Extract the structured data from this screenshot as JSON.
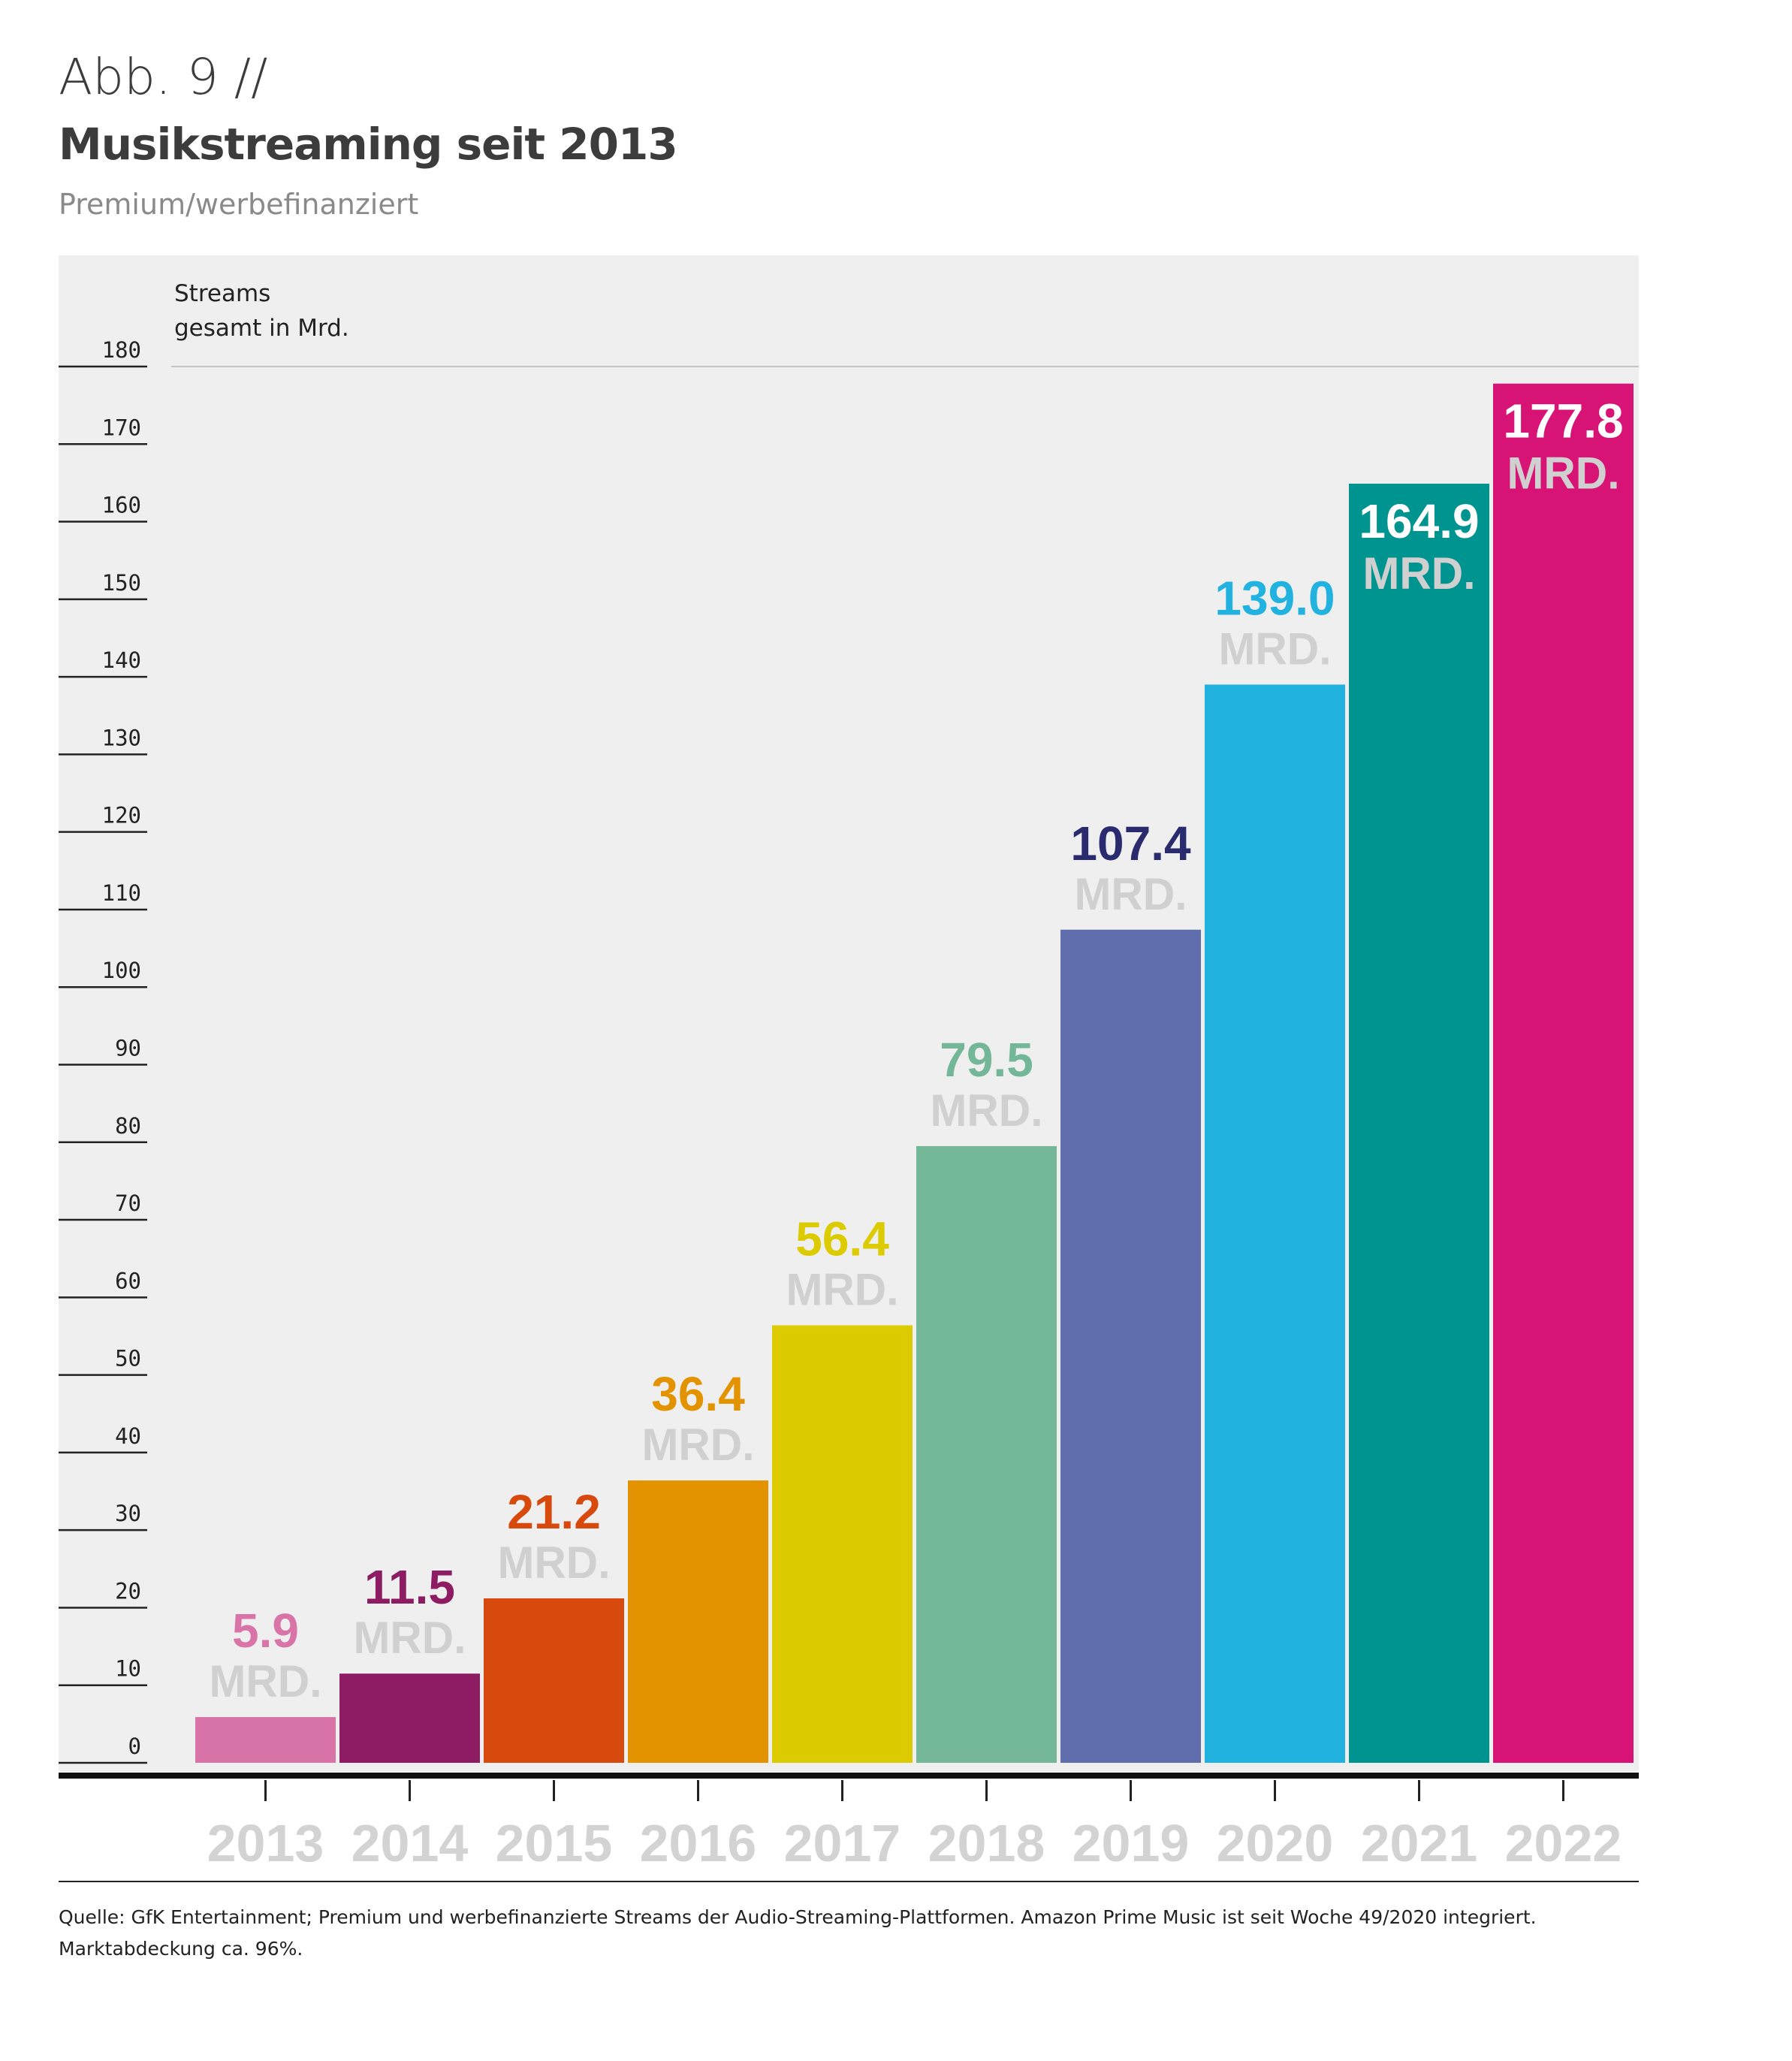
{
  "header": {
    "figure_label": "Abb. 9 //",
    "title": "Musikstreaming seit 2013",
    "subtitle": "Premium/werbefinanziert"
  },
  "footer": {
    "source_line1": "Quelle: GfK Entertainment; Premium und werbefinanzierte Streams der Audio-Streaming-Plattformen. Amazon Prime Music ist seit Woche 49/2020 integriert.",
    "source_line2": "Marktabdeckung ca. 96%."
  },
  "chart_data": {
    "type": "bar",
    "title": "Musikstreaming seit 2013",
    "subtitle": "Premium/werbefinanziert",
    "ylabel": "Streams\ngesamt in Mrd.",
    "xlabel": "",
    "unit_label": "MRD.",
    "ylim": [
      0,
      180
    ],
    "yticks": [
      0,
      10,
      20,
      30,
      40,
      50,
      60,
      70,
      80,
      90,
      100,
      110,
      120,
      130,
      140,
      150,
      160,
      170,
      180
    ],
    "grid": false,
    "categories": [
      "2013",
      "2014",
      "2015",
      "2016",
      "2017",
      "2018",
      "2019",
      "2020",
      "2021",
      "2022"
    ],
    "values": [
      5.9,
      11.5,
      21.2,
      36.4,
      56.4,
      79.5,
      107.4,
      139.0,
      164.9,
      177.8
    ],
    "value_labels": [
      "5.9",
      "11.5",
      "21.2",
      "36.4",
      "56.4",
      "79.5",
      "107.4",
      "139.0",
      "164.9",
      "177.8"
    ],
    "colors": [
      "#d974a8",
      "#8e1c62",
      "#d8490e",
      "#e39200",
      "#dccb00",
      "#74b798",
      "#606ead",
      "#21b2e0",
      "#009490",
      "#d81376"
    ],
    "label_colors": [
      "#d974a8",
      "#8e1c62",
      "#d8490e",
      "#e39200",
      "#dccb00",
      "#74b798",
      "#2a2a6e",
      "#21b2e0",
      "#ffffff",
      "#ffffff"
    ],
    "unit_color": "#d0d0d0",
    "year_label_color": "#d3d3d3"
  }
}
